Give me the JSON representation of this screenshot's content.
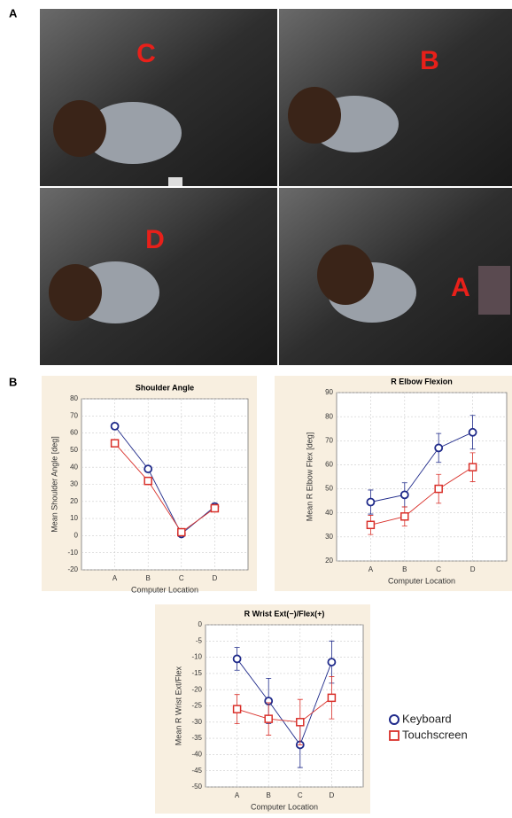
{
  "panel_labels": [
    "A",
    "B"
  ],
  "photo_labels": [
    "C",
    "B",
    "D",
    "A"
  ],
  "chart_data": [
    {
      "type": "line",
      "title": "Shoulder Angle",
      "x_label": "Computer Location",
      "y_label": "Mean Shoulder Angle [deg]",
      "categories": [
        "A",
        "B",
        "C",
        "D"
      ],
      "ylim": [
        -20,
        80
      ],
      "yticks": [
        -20,
        -10,
        0,
        10,
        20,
        30,
        40,
        50,
        60,
        70,
        80
      ],
      "grid": true,
      "series": [
        {
          "color": "#1f2a8a",
          "marker": "circle",
          "values": [
            64,
            39,
            1,
            17
          ],
          "errors": [
            1.5,
            1.5,
            1.5,
            2
          ]
        },
        {
          "color": "#d9302a",
          "marker": "square",
          "values": [
            54,
            32,
            2,
            16
          ],
          "errors": [
            1.5,
            1.5,
            1.5,
            2
          ]
        }
      ]
    },
    {
      "type": "line",
      "title": "R Elbow Flexion",
      "x_label": "Computer Location",
      "y_label": "Mean R Elbow Flex [deg]",
      "categories": [
        "A",
        "B",
        "C",
        "D"
      ],
      "ylim": [
        20,
        90
      ],
      "yticks": [
        20,
        30,
        40,
        50,
        60,
        70,
        80,
        90
      ],
      "grid": true,
      "series": [
        {
          "color": "#1f2a8a",
          "marker": "circle",
          "values": [
            44.5,
            47.5,
            67,
            73.5
          ],
          "errors": [
            5,
            5,
            6,
            7
          ]
        },
        {
          "color": "#d9302a",
          "marker": "square",
          "values": [
            35,
            38.5,
            50,
            59
          ],
          "errors": [
            4,
            4,
            6,
            6
          ]
        }
      ]
    },
    {
      "type": "line",
      "title": "R Wrist Ext(−)/Flex(+)",
      "x_label": "Computer Location",
      "y_label": "Mean R Wrist Ext/Flex",
      "categories": [
        "A",
        "B",
        "C",
        "D"
      ],
      "ylim": [
        -50,
        0
      ],
      "yticks": [
        -50,
        -45,
        -40,
        -35,
        -30,
        -25,
        -20,
        -15,
        -10,
        -5,
        0
      ],
      "grid": true,
      "series": [
        {
          "name": "Keyboard",
          "color": "#1f2a8a",
          "marker": "circle",
          "values": [
            -10.5,
            -23.5,
            -37,
            -11.5
          ],
          "errors": [
            3.5,
            7,
            7,
            6.5
          ]
        },
        {
          "name": "Touchscreen",
          "color": "#d9302a",
          "marker": "square",
          "values": [
            -26,
            -29,
            -30,
            -22.5
          ],
          "errors": [
            4.5,
            5,
            7,
            6.5
          ]
        }
      ]
    }
  ]
}
